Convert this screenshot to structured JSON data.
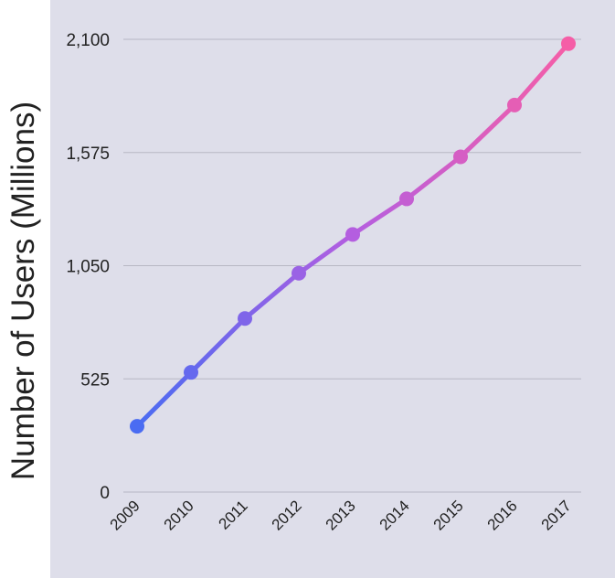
{
  "chart_data": {
    "type": "line",
    "title": "",
    "xlabel": "",
    "ylabel": "Number of Users (Millions)",
    "categories": [
      "2009",
      "2010",
      "2011",
      "2012",
      "2013",
      "2014",
      "2015",
      "2016",
      "2017"
    ],
    "series": [
      {
        "values": [
          305,
          555,
          805,
          1015,
          1195,
          1360,
          1555,
          1795,
          2080
        ]
      }
    ],
    "yticks": [
      "0",
      "525",
      "1,050",
      "1,575",
      "2,100"
    ],
    "ylim": [
      0,
      2100
    ],
    "grid": "horizontal",
    "colors": {
      "start": "#4a6cf2",
      "end": "#f55ea7",
      "background": "#dedeea",
      "grid": "#b7b7c4"
    }
  }
}
